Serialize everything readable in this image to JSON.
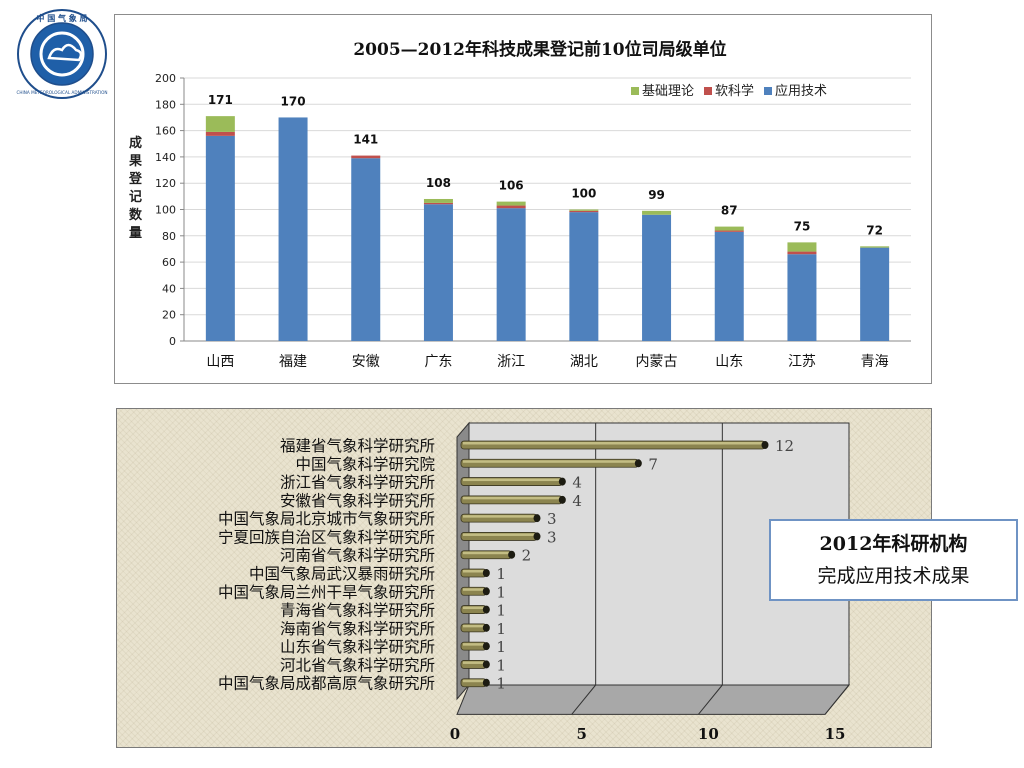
{
  "logo": {
    "top_text": "中 国 气 象 局",
    "ring_text": "CHINA METEOROLOGICAL ADMINISTRATION"
  },
  "colors": {
    "base": "#4f81bd",
    "soft": "#c0504d",
    "applied": "#9bbb59",
    "bar3d_front": "#8b844f",
    "bar3d_top": "#c9c38a"
  },
  "callout": {
    "line1": "2012年科研机构",
    "line2": "完成应用技术成果"
  },
  "chart_data": [
    {
      "type": "bar",
      "stacked": true,
      "title": "2005—2012年科技成果登记前10位司局级单位",
      "ylabel": "成果登记数量",
      "xlabel": "",
      "ylim": [
        0,
        200
      ],
      "yticks": [
        0,
        20,
        40,
        60,
        80,
        100,
        120,
        140,
        160,
        180,
        200
      ],
      "grid": true,
      "legend_position": "top-right",
      "legend_order": [
        "基础理论",
        "软科学",
        "应用技术"
      ],
      "categories": [
        "山西",
        "福建",
        "安徽",
        "广东",
        "浙江",
        "湖北",
        "内蒙古",
        "山东",
        "江苏",
        "青海"
      ],
      "totals": [
        171,
        170,
        141,
        108,
        106,
        100,
        99,
        87,
        75,
        72
      ],
      "series": [
        {
          "name": "应用技术",
          "color": "#4f81bd",
          "values": [
            156,
            170,
            139,
            104,
            101,
            98,
            96,
            83,
            66,
            71
          ]
        },
        {
          "name": "软科学",
          "color": "#c0504d",
          "values": [
            3,
            0,
            2,
            1,
            2,
            1,
            0,
            1,
            2,
            0
          ]
        },
        {
          "name": "基础理论",
          "color": "#9bbb59",
          "values": [
            12,
            0,
            0,
            3,
            3,
            1,
            3,
            3,
            7,
            1
          ]
        }
      ]
    },
    {
      "type": "bar",
      "orientation": "horizontal",
      "style": "3d-cylinder",
      "xlim": [
        0,
        15
      ],
      "xticks": [
        0,
        5,
        10,
        15
      ],
      "categories": [
        "福建省气象科学研究所",
        "中国气象科学研究院",
        "浙江省气象科学研究所",
        "安徽省气象科学研究所",
        "中国气象局北京城市气象研究所",
        "宁夏回族自治区气象科学研究所",
        "河南省气象科学研究所",
        "中国气象局武汉暴雨研究所",
        "中国气象局兰州干旱气象研究所",
        "青海省气象科学研究所",
        "海南省气象科学研究所",
        "山东省气象科学研究所",
        "河北省气象科学研究所",
        "中国气象局成都高原气象研究所"
      ],
      "values": [
        12,
        7,
        4,
        4,
        3,
        3,
        2,
        1,
        1,
        1,
        1,
        1,
        1,
        1
      ]
    }
  ]
}
